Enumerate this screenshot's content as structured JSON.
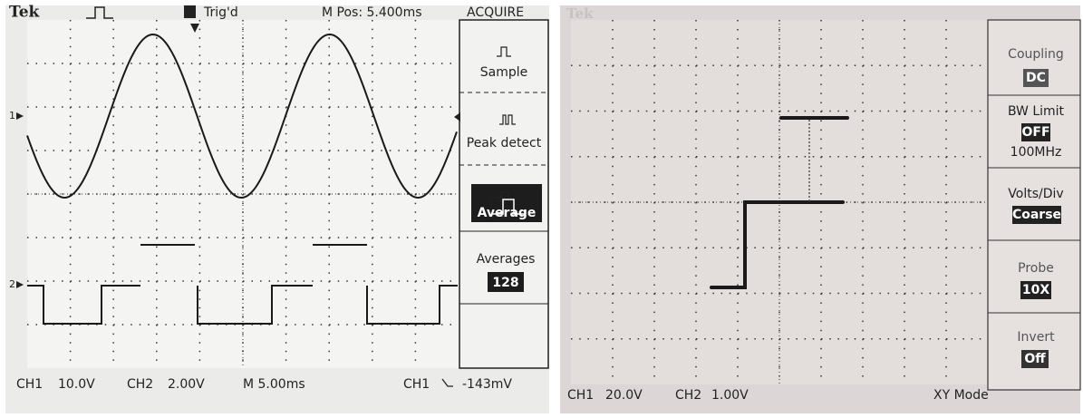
{
  "left_screen": {
    "brand": "Tek",
    "trigger_status": "Trig'd",
    "position": "M Pos: 5.400ms",
    "menu_title": "ACQUIRE",
    "channel_markers": [
      "1",
      "2"
    ],
    "menu": [
      {
        "label": "Sample"
      },
      {
        "label": "Peak detect"
      },
      {
        "label": "Average"
      },
      {
        "label": "Averages",
        "value": "128"
      }
    ],
    "status": {
      "ch1": "CH1",
      "ch1_scale": "10.0V",
      "ch2": "CH2",
      "ch2_scale": "2.00V",
      "timebase": "M 5.00ms",
      "trigger_source": "CH1",
      "trigger_level": "-143mV"
    }
  },
  "right_screen": {
    "brand": "Tek",
    "menu": [
      {
        "label": "Coupling",
        "value": "DC"
      },
      {
        "label": "BW Limit",
        "value": "OFF",
        "detail": "100MHz"
      },
      {
        "label": "Volts/Div",
        "value": "Coarse"
      },
      {
        "label": "Probe",
        "value": "10X"
      },
      {
        "label": "Invert",
        "value": "Off"
      }
    ],
    "status": {
      "ch1": "CH1",
      "ch1_scale": "20.0V",
      "ch2": "CH2",
      "ch2_scale": "1.00V",
      "mode": "XY Mode"
    }
  }
}
